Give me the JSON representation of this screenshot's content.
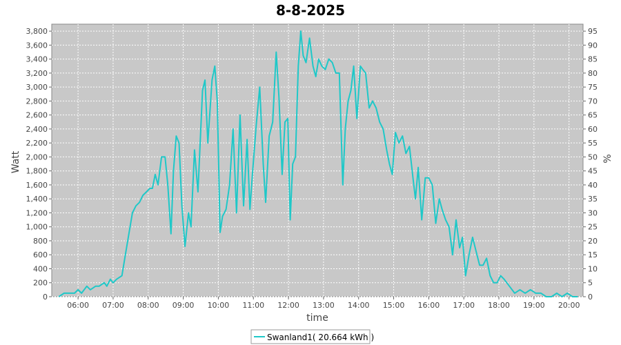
{
  "chart_data": {
    "type": "line",
    "title": "8-8-2025",
    "xlabel": "time",
    "ylabel": "Watt",
    "y2label": "%",
    "xlim": [
      5.25,
      20.4
    ],
    "ylim": [
      0,
      3900
    ],
    "y2lim": [
      0,
      97.5
    ],
    "x_ticks": [
      "06:00",
      "07:00",
      "08:00",
      "09:00",
      "10:00",
      "11:00",
      "12:00",
      "13:00",
      "14:00",
      "15:00",
      "16:00",
      "17:00",
      "18:00",
      "19:00",
      "20:00"
    ],
    "y_ticks": [
      "0",
      "200",
      "400",
      "600",
      "800",
      "1,000",
      "1,200",
      "1,400",
      "1,600",
      "1,800",
      "2,000",
      "2,200",
      "2,400",
      "2,600",
      "2,800",
      "3,000",
      "3,200",
      "3,400",
      "3,600",
      "3,800"
    ],
    "y2_ticks": [
      "0",
      "5",
      "10",
      "15",
      "20",
      "25",
      "30",
      "35",
      "40",
      "45",
      "50",
      "55",
      "60",
      "65",
      "70",
      "75",
      "80",
      "85",
      "90",
      "95"
    ],
    "grid": true,
    "legend_position": "bottom-center",
    "colors": {
      "plot_background": "#c8c8c8",
      "series": "#1ec8c8",
      "grid": "#ffffff"
    },
    "series": [
      {
        "name": "Swanland1( 20.664 kWh )",
        "points": [
          [
            5.45,
            0
          ],
          [
            5.6,
            50
          ],
          [
            5.75,
            50
          ],
          [
            5.9,
            50
          ],
          [
            6.0,
            100
          ],
          [
            6.1,
            50
          ],
          [
            6.25,
            150
          ],
          [
            6.35,
            100
          ],
          [
            6.5,
            150
          ],
          [
            6.6,
            150
          ],
          [
            6.75,
            200
          ],
          [
            6.82,
            150
          ],
          [
            6.92,
            250
          ],
          [
            7.0,
            200
          ],
          [
            7.1,
            250
          ],
          [
            7.25,
            300
          ],
          [
            7.35,
            600
          ],
          [
            7.45,
            900
          ],
          [
            7.55,
            1200
          ],
          [
            7.65,
            1300
          ],
          [
            7.75,
            1350
          ],
          [
            7.85,
            1450
          ],
          [
            7.95,
            1500
          ],
          [
            8.05,
            1550
          ],
          [
            8.12,
            1550
          ],
          [
            8.2,
            1750
          ],
          [
            8.28,
            1600
          ],
          [
            8.38,
            2000
          ],
          [
            8.48,
            2000
          ],
          [
            8.56,
            1600
          ],
          [
            8.65,
            900
          ],
          [
            8.72,
            1800
          ],
          [
            8.8,
            2300
          ],
          [
            8.88,
            2200
          ],
          [
            8.96,
            1300
          ],
          [
            9.05,
            720
          ],
          [
            9.15,
            1200
          ],
          [
            9.22,
            1000
          ],
          [
            9.32,
            2100
          ],
          [
            9.42,
            1500
          ],
          [
            9.55,
            2950
          ],
          [
            9.62,
            3100
          ],
          [
            9.7,
            2200
          ],
          [
            9.82,
            3100
          ],
          [
            9.9,
            3300
          ],
          [
            9.97,
            2800
          ],
          [
            10.05,
            920
          ],
          [
            10.12,
            1150
          ],
          [
            10.22,
            1250
          ],
          [
            10.32,
            1600
          ],
          [
            10.42,
            2400
          ],
          [
            10.52,
            1200
          ],
          [
            10.62,
            2600
          ],
          [
            10.72,
            1300
          ],
          [
            10.82,
            2250
          ],
          [
            10.9,
            1250
          ],
          [
            10.98,
            1800
          ],
          [
            11.08,
            2450
          ],
          [
            11.18,
            3000
          ],
          [
            11.28,
            1900
          ],
          [
            11.35,
            1350
          ],
          [
            11.45,
            2300
          ],
          [
            11.55,
            2500
          ],
          [
            11.65,
            3500
          ],
          [
            11.73,
            2850
          ],
          [
            11.82,
            1750
          ],
          [
            11.9,
            2500
          ],
          [
            11.98,
            2550
          ],
          [
            12.05,
            1100
          ],
          [
            12.12,
            1900
          ],
          [
            12.2,
            2000
          ],
          [
            12.28,
            3300
          ],
          [
            12.35,
            3800
          ],
          [
            12.42,
            3450
          ],
          [
            12.5,
            3350
          ],
          [
            12.6,
            3700
          ],
          [
            12.7,
            3300
          ],
          [
            12.78,
            3150
          ],
          [
            12.86,
            3400
          ],
          [
            12.95,
            3300
          ],
          [
            13.05,
            3250
          ],
          [
            13.15,
            3400
          ],
          [
            13.25,
            3350
          ],
          [
            13.35,
            3200
          ],
          [
            13.45,
            3200
          ],
          [
            13.55,
            1600
          ],
          [
            13.62,
            2400
          ],
          [
            13.7,
            2800
          ],
          [
            13.78,
            2950
          ],
          [
            13.86,
            3300
          ],
          [
            13.95,
            2550
          ],
          [
            14.05,
            3300
          ],
          [
            14.12,
            3250
          ],
          [
            14.2,
            3200
          ],
          [
            14.3,
            2700
          ],
          [
            14.4,
            2800
          ],
          [
            14.5,
            2700
          ],
          [
            14.6,
            2500
          ],
          [
            14.7,
            2400
          ],
          [
            14.8,
            2100
          ],
          [
            14.88,
            1900
          ],
          [
            14.96,
            1750
          ],
          [
            15.05,
            2350
          ],
          [
            15.15,
            2200
          ],
          [
            15.25,
            2300
          ],
          [
            15.35,
            2050
          ],
          [
            15.45,
            2150
          ],
          [
            15.55,
            1700
          ],
          [
            15.62,
            1400
          ],
          [
            15.7,
            1850
          ],
          [
            15.8,
            1100
          ],
          [
            15.9,
            1700
          ],
          [
            16.0,
            1700
          ],
          [
            16.1,
            1600
          ],
          [
            16.2,
            1050
          ],
          [
            16.3,
            1400
          ],
          [
            16.38,
            1250
          ],
          [
            16.48,
            1100
          ],
          [
            16.58,
            1000
          ],
          [
            16.68,
            600
          ],
          [
            16.78,
            1100
          ],
          [
            16.88,
            700
          ],
          [
            16.96,
            850
          ],
          [
            17.05,
            300
          ],
          [
            17.15,
            600
          ],
          [
            17.25,
            850
          ],
          [
            17.35,
            650
          ],
          [
            17.45,
            450
          ],
          [
            17.55,
            450
          ],
          [
            17.65,
            550
          ],
          [
            17.75,
            300
          ],
          [
            17.85,
            200
          ],
          [
            17.95,
            200
          ],
          [
            18.05,
            300
          ],
          [
            18.15,
            250
          ],
          [
            18.3,
            150
          ],
          [
            18.45,
            50
          ],
          [
            18.6,
            100
          ],
          [
            18.75,
            50
          ],
          [
            18.9,
            100
          ],
          [
            19.05,
            50
          ],
          [
            19.2,
            50
          ],
          [
            19.35,
            0
          ],
          [
            19.5,
            0
          ],
          [
            19.65,
            50
          ],
          [
            19.8,
            0
          ],
          [
            19.95,
            50
          ],
          [
            20.1,
            0
          ],
          [
            20.25,
            0
          ]
        ]
      }
    ]
  }
}
